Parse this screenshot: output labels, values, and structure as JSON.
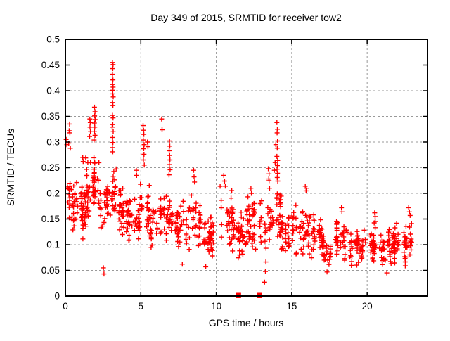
{
  "chart_data": {
    "type": "scatter",
    "title": "Day 349 of 2015, SRMTID for receiver tow2",
    "xlabel": "GPS time / hours",
    "ylabel": "SRMTID / TECUs",
    "xlim": [
      0,
      24
    ],
    "ylim": [
      0,
      0.5
    ],
    "xticks": [
      0,
      5,
      10,
      15,
      20
    ],
    "xtick_labels": [
      "0",
      "5",
      "10",
      "15",
      "20"
    ],
    "yticks": [
      0,
      0.05,
      0.1,
      0.15,
      0.2,
      0.25,
      0.3,
      0.35,
      0.4,
      0.45,
      0.5
    ],
    "ytick_labels": [
      "0",
      "0.05",
      "0.1",
      "0.15",
      "0.2",
      "0.25",
      "0.3",
      "0.35",
      "0.4",
      "0.45",
      "0.5"
    ],
    "grid": true,
    "grid_color": "#999999",
    "frame_color": "#000000",
    "legend": "none",
    "marker": "plus",
    "marker_color": "#ff0000",
    "seed": 1349,
    "notable_points": [
      [
        0.05,
        0.305
      ],
      [
        0.1,
        0.295
      ],
      [
        0.22,
        0.298
      ],
      [
        0.25,
        0.322
      ],
      [
        0.28,
        0.335
      ],
      [
        0.3,
        0.318
      ],
      [
        0.33,
        0.288
      ],
      [
        1.15,
        0.27
      ],
      [
        1.18,
        0.262
      ],
      [
        1.61,
        0.311
      ],
      [
        1.62,
        0.345
      ],
      [
        1.63,
        0.329
      ],
      [
        1.65,
        0.338
      ],
      [
        1.66,
        0.321
      ],
      [
        1.9,
        0.304
      ],
      [
        1.92,
        0.337
      ],
      [
        1.93,
        0.368
      ],
      [
        1.93,
        0.321
      ],
      [
        1.94,
        0.351
      ],
      [
        1.95,
        0.329
      ],
      [
        1.96,
        0.359
      ],
      [
        1.96,
        0.313
      ],
      [
        1.97,
        0.344
      ],
      [
        2.52,
        0.055
      ],
      [
        2.56,
        0.043
      ],
      [
        3.1,
        0.329
      ],
      [
        3.12,
        0.455
      ],
      [
        3.12,
        0.432
      ],
      [
        3.12,
        0.401
      ],
      [
        3.12,
        0.352
      ],
      [
        3.12,
        0.289
      ],
      [
        3.13,
        0.412
      ],
      [
        3.13,
        0.377
      ],
      [
        3.13,
        0.309
      ],
      [
        3.14,
        0.443
      ],
      [
        3.14,
        0.394
      ],
      [
        3.14,
        0.334
      ],
      [
        3.14,
        0.281
      ],
      [
        3.15,
        0.421
      ],
      [
        3.15,
        0.371
      ],
      [
        3.15,
        0.299
      ],
      [
        3.16,
        0.451
      ],
      [
        3.16,
        0.407
      ],
      [
        3.16,
        0.347
      ],
      [
        3.17,
        0.388
      ],
      [
        3.17,
        0.321
      ],
      [
        4.7,
        0.245
      ],
      [
        4.72,
        0.235
      ],
      [
        5.15,
        0.332
      ],
      [
        5.16,
        0.304
      ],
      [
        5.17,
        0.265
      ],
      [
        5.18,
        0.323
      ],
      [
        5.19,
        0.287
      ],
      [
        5.2,
        0.315
      ],
      [
        5.21,
        0.276
      ],
      [
        5.22,
        0.295
      ],
      [
        5.23,
        0.255
      ],
      [
        5.44,
        0.3
      ],
      [
        5.47,
        0.291
      ],
      [
        6.38,
        0.345
      ],
      [
        6.41,
        0.324
      ],
      [
        6.87,
        0.236
      ],
      [
        6.88,
        0.283
      ],
      [
        6.89,
        0.256
      ],
      [
        6.9,
        0.302
      ],
      [
        6.91,
        0.274
      ],
      [
        6.92,
        0.292
      ],
      [
        6.93,
        0.265
      ],
      [
        6.94,
        0.246
      ],
      [
        7.75,
        0.062
      ],
      [
        8.5,
        0.245
      ],
      [
        8.53,
        0.232
      ],
      [
        8.56,
        0.222
      ],
      [
        9.3,
        0.057
      ],
      [
        10.5,
        0.235
      ],
      [
        10.55,
        0.224
      ],
      [
        10.6,
        0.214
      ],
      [
        11.42,
        0
      ],
      [
        11.48,
        0
      ],
      [
        12.82,
        0
      ],
      [
        12.88,
        0
      ],
      [
        12.3,
        0.21
      ],
      [
        12.33,
        0.2
      ],
      [
        13.2,
        0.027
      ],
      [
        13.26,
        0.048
      ],
      [
        13.45,
        0.248
      ],
      [
        13.5,
        0.238
      ],
      [
        13.48,
        0.228
      ],
      [
        13.85,
        0.245
      ],
      [
        13.9,
        0.26
      ],
      [
        13.95,
        0.295
      ],
      [
        14.02,
        0.338
      ],
      [
        14.02,
        0.272
      ],
      [
        14.03,
        0.318
      ],
      [
        14.03,
        0.247
      ],
      [
        14.04,
        0.288
      ],
      [
        14.04,
        0.231
      ],
      [
        14.05,
        0.325
      ],
      [
        14.05,
        0.254
      ],
      [
        14.06,
        0.302
      ],
      [
        14.06,
        0.239
      ],
      [
        14.07,
        0.264
      ],
      [
        14.08,
        0.224
      ],
      [
        15.9,
        0.214
      ],
      [
        15.95,
        0.205
      ],
      [
        16.0,
        0.21
      ],
      [
        18.3,
        0.172
      ],
      [
        18.33,
        0.164
      ],
      [
        20.5,
        0.162
      ],
      [
        20.53,
        0.155
      ],
      [
        21.3,
        0.045
      ],
      [
        22.75,
        0.172
      ],
      [
        22.8,
        0.164
      ],
      [
        22.85,
        0.157
      ]
    ],
    "density_bands": [
      [
        0.0,
        0.3,
        14,
        0.13,
        0.27
      ],
      [
        0.3,
        0.8,
        26,
        0.11,
        0.25
      ],
      [
        0.8,
        1.3,
        26,
        0.1,
        0.24
      ],
      [
        1.3,
        1.8,
        30,
        0.12,
        0.29
      ],
      [
        1.8,
        2.3,
        34,
        0.14,
        0.3
      ],
      [
        2.3,
        2.9,
        30,
        0.11,
        0.26
      ],
      [
        2.9,
        3.35,
        24,
        0.14,
        0.28
      ],
      [
        3.35,
        4.2,
        40,
        0.1,
        0.23
      ],
      [
        4.2,
        5.0,
        38,
        0.09,
        0.21
      ],
      [
        5.0,
        5.6,
        26,
        0.1,
        0.24
      ],
      [
        5.6,
        6.3,
        30,
        0.08,
        0.2
      ],
      [
        6.3,
        7.1,
        34,
        0.09,
        0.22
      ],
      [
        7.1,
        8.1,
        40,
        0.065,
        0.2
      ],
      [
        8.1,
        9.0,
        38,
        0.06,
        0.215
      ],
      [
        9.0,
        10.2,
        46,
        0.06,
        0.18
      ],
      [
        10.2,
        11.2,
        42,
        0.065,
        0.22
      ],
      [
        11.2,
        12.0,
        34,
        0.06,
        0.18
      ],
      [
        12.0,
        12.9,
        38,
        0.06,
        0.21
      ],
      [
        12.9,
        13.7,
        34,
        0.05,
        0.25
      ],
      [
        13.7,
        14.3,
        30,
        0.08,
        0.23
      ],
      [
        14.3,
        15.2,
        38,
        0.06,
        0.19
      ],
      [
        15.2,
        16.2,
        44,
        0.05,
        0.2
      ],
      [
        16.2,
        17.0,
        36,
        0.06,
        0.18
      ],
      [
        17.0,
        17.8,
        36,
        0.04,
        0.14
      ],
      [
        17.8,
        18.7,
        40,
        0.055,
        0.165
      ],
      [
        18.7,
        19.8,
        46,
        0.045,
        0.15
      ],
      [
        19.8,
        20.9,
        46,
        0.055,
        0.16
      ],
      [
        20.9,
        21.6,
        32,
        0.045,
        0.14
      ],
      [
        21.6,
        22.4,
        36,
        0.055,
        0.15
      ],
      [
        22.4,
        23.05,
        32,
        0.05,
        0.165
      ]
    ]
  }
}
